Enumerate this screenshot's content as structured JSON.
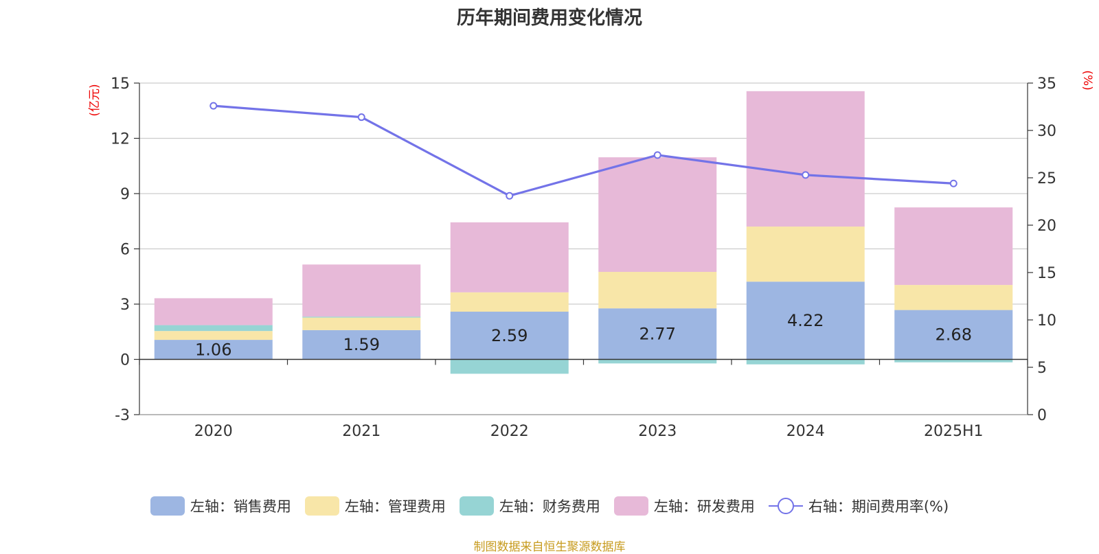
{
  "chart_data": {
    "type": "bar",
    "title": "历年期间费用变化情况",
    "categories": [
      "2020",
      "2021",
      "2022",
      "2023",
      "2024",
      "2025H1"
    ],
    "left_axis": {
      "label": "(亿元)",
      "ylim": [
        -3,
        15
      ],
      "ticks": [
        -3,
        0,
        3,
        6,
        9,
        12,
        15
      ]
    },
    "right_axis": {
      "label": "(%)",
      "ylim": [
        0,
        35
      ],
      "ticks": [
        0,
        5,
        10,
        15,
        20,
        25,
        30,
        35
      ]
    },
    "series": [
      {
        "name": "左轴：销售费用",
        "type": "bar",
        "axis": "left",
        "color": "#9db6e2",
        "values": [
          1.06,
          1.59,
          2.59,
          2.77,
          4.22,
          2.68
        ],
        "show_labels": true
      },
      {
        "name": "左轴：管理费用",
        "type": "bar",
        "axis": "left",
        "color": "#f8e6a8",
        "values": [
          0.48,
          0.68,
          1.05,
          1.98,
          2.99,
          1.36
        ]
      },
      {
        "name": "左轴：财务费用",
        "type": "bar",
        "axis": "left",
        "color": "#96d4d4",
        "values": [
          0.32,
          0.05,
          -0.78,
          -0.22,
          -0.27,
          -0.16
        ]
      },
      {
        "name": "左轴：研发费用",
        "type": "bar",
        "axis": "left",
        "color": "#e7b9d8",
        "values": [
          1.46,
          2.83,
          3.8,
          6.22,
          7.35,
          4.21
        ]
      },
      {
        "name": "右轴：期间费用率(%)",
        "type": "line",
        "axis": "right",
        "color": "#7373e8",
        "values": [
          32.6,
          31.4,
          23.1,
          27.4,
          25.3,
          24.4
        ]
      }
    ],
    "grid": true,
    "legend_position": "bottom"
  },
  "source_text": "制图数据来自恒生聚源数据库"
}
